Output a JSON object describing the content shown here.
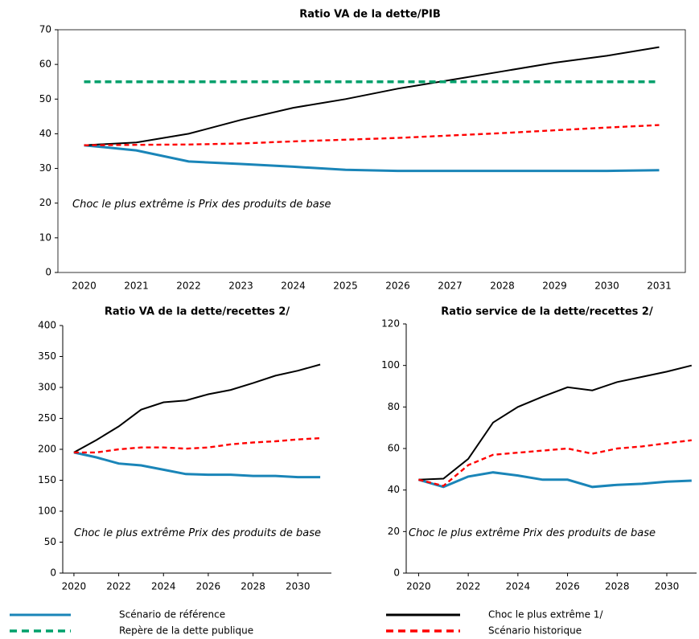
{
  "chart_data": [
    {
      "type": "line",
      "title": "Ratio VA de la dette/PIB",
      "categories": [
        "2020",
        "2021",
        "2022",
        "2023",
        "2024",
        "2025",
        "2026",
        "2027",
        "2028",
        "2029",
        "2030",
        "2031"
      ],
      "ylim": [
        0,
        70
      ],
      "yticks": [
        0,
        10,
        20,
        30,
        40,
        50,
        60,
        70
      ],
      "annotation": "Choc le plus extrême is Prix des produits de base",
      "series": [
        {
          "name": "Scénario de référence",
          "color": "#1a85b8",
          "values": [
            36.7,
            35.2,
            32,
            31.3,
            30.5,
            29.6,
            29.3,
            29.3,
            29.3,
            29.3,
            29.3,
            29.5
          ]
        },
        {
          "name": "Choc le plus extrême 1/",
          "color": "#000000",
          "values": [
            36.7,
            37.5,
            40,
            44,
            47.5,
            50,
            53,
            55.5,
            58,
            60.5,
            62.5,
            65
          ]
        },
        {
          "name": "Repère de la dette publique",
          "color": "#00a06b",
          "dash": true,
          "values": [
            55,
            55,
            55,
            55,
            55,
            55,
            55,
            55,
            55,
            55,
            55,
            55
          ]
        },
        {
          "name": "Scénario historique",
          "color": "#ff0000",
          "dash": true,
          "values": [
            36.7,
            36.8,
            36.9,
            37.2,
            37.8,
            38.3,
            38.8,
            39.5,
            40.2,
            41,
            41.8,
            42.5
          ]
        }
      ]
    },
    {
      "type": "line",
      "title": "Ratio VA de la dette/recettes  2/",
      "x": [
        2020,
        2021,
        2022,
        2023,
        2024,
        2025,
        2026,
        2027,
        2028,
        2029,
        2030,
        2031
      ],
      "xlim": [
        2019.5,
        2031.5
      ],
      "xticks": [
        2020,
        2022,
        2024,
        2026,
        2028,
        2030
      ],
      "ylim": [
        0,
        400
      ],
      "yticks": [
        0,
        50,
        100,
        150,
        200,
        250,
        300,
        350,
        400
      ],
      "annotation": "Choc le plus extrême Prix des produits de base",
      "series": [
        {
          "color": "#1a85b8",
          "values": [
            195,
            187,
            177,
            174,
            167,
            160,
            159,
            159,
            157,
            157,
            155,
            155
          ]
        },
        {
          "color": "#000000",
          "values": [
            195,
            215,
            237,
            264,
            276,
            279,
            289,
            296,
            307,
            319,
            327,
            337
          ]
        },
        {
          "color": "#ff0000",
          "dash": true,
          "values": [
            195,
            195,
            200,
            203,
            203,
            201,
            203,
            208,
            211,
            213,
            216,
            218
          ]
        }
      ]
    },
    {
      "type": "line",
      "title": "Ratio service de la dette/recettes  2/",
      "x": [
        2020,
        2021,
        2022,
        2023,
        2024,
        2025,
        2026,
        2027,
        2028,
        2029,
        2030,
        2031
      ],
      "xlim": [
        2019.5,
        2031.2
      ],
      "xticks": [
        2020,
        2022,
        2024,
        2026,
        2028,
        2030
      ],
      "ylim": [
        0,
        120
      ],
      "yticks": [
        0,
        20,
        40,
        60,
        80,
        100,
        120
      ],
      "annotation": "Choc le plus extrême Prix des produits de base",
      "series": [
        {
          "color": "#1a85b8",
          "values": [
            45,
            41.5,
            46.5,
            48.5,
            47,
            45,
            45,
            41.5,
            42.5,
            43,
            44,
            44.5
          ]
        },
        {
          "color": "#000000",
          "values": [
            45,
            45.5,
            55,
            72.5,
            80,
            85,
            89.5,
            88,
            92,
            94.5,
            97,
            100
          ]
        },
        {
          "color": "#ff0000",
          "dash": true,
          "values": [
            45,
            42,
            52,
            57,
            58,
            59,
            60,
            57.5,
            60,
            61,
            62.5,
            64
          ]
        }
      ]
    }
  ]
}
